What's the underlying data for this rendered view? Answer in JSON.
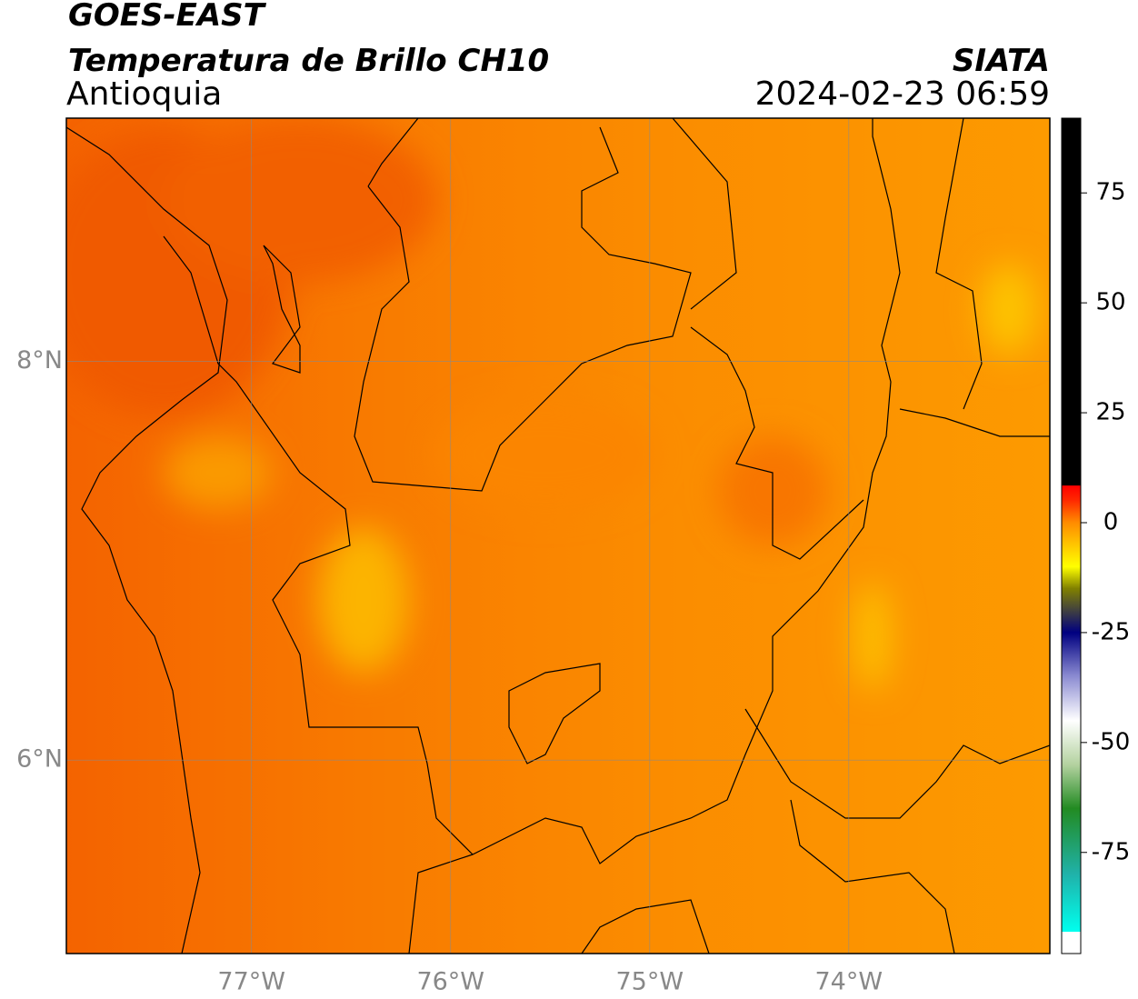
{
  "header": {
    "title": "GOES-EAST",
    "subtitle": "Temperatura de Brillo CH10",
    "region": "Antioquia",
    "source": "SIATA",
    "datetime": "2024-02-23 06:59"
  },
  "map": {
    "lonlim": [
      -77.93,
      -72.99
    ],
    "latlim": [
      5.03,
      9.22
    ],
    "lonticks": [
      {
        "value": -77,
        "label": "77°W"
      },
      {
        "value": -76,
        "label": "76°W"
      },
      {
        "value": -75,
        "label": "75°W"
      },
      {
        "value": -74,
        "label": "74°W"
      }
    ],
    "latticks": [
      {
        "value": 8,
        "label": "8°N"
      },
      {
        "value": 6,
        "label": "6°N"
      }
    ],
    "grid": true
  },
  "colorbar": {
    "lim": [
      -98,
      92
    ],
    "ticks": [
      75,
      50,
      25,
      0,
      -25,
      -50,
      -75
    ],
    "stops": [
      {
        "value": 92,
        "color": "#000000"
      },
      {
        "value": 8.5,
        "color": "#000000"
      },
      {
        "value": 8.4,
        "color": "#ff0000"
      },
      {
        "value": 5,
        "color": "#ff2a00"
      },
      {
        "value": 0,
        "color": "#ff8c00"
      },
      {
        "value": -10,
        "color": "#ffff00"
      },
      {
        "value": -15,
        "color": "#808000"
      },
      {
        "value": -20,
        "color": "#404040"
      },
      {
        "value": -25,
        "color": "#000080"
      },
      {
        "value": -35,
        "color": "#8c8cd2"
      },
      {
        "value": -45,
        "color": "#ffffff"
      },
      {
        "value": -55,
        "color": "#b4d2a0"
      },
      {
        "value": -65,
        "color": "#228b22"
      },
      {
        "value": -80,
        "color": "#20b2aa"
      },
      {
        "value": -93,
        "color": "#00ffee"
      },
      {
        "value": -92.9,
        "color": "#ffffff"
      },
      {
        "value": -98,
        "color": "#ffffff"
      }
    ]
  }
}
